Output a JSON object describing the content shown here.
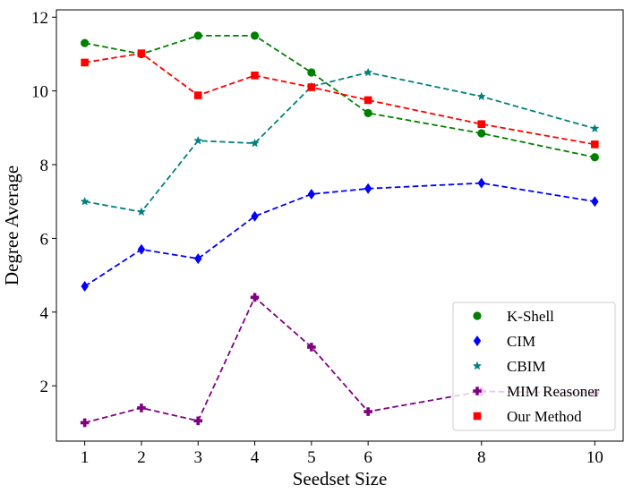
{
  "chart_data": {
    "type": "line",
    "title": "",
    "xlabel": "Seedset Size",
    "ylabel": "Degree Average",
    "xlim": [
      0.5,
      10.5
    ],
    "ylim": [
      0.5,
      12.2
    ],
    "xticks": [
      1,
      2,
      3,
      4,
      5,
      6,
      8,
      10
    ],
    "yticks": [
      2,
      4,
      6,
      8,
      10,
      12
    ],
    "x": [
      1,
      2,
      3,
      4,
      5,
      6,
      8,
      10
    ],
    "grid": false,
    "legend_position": "bottom-right",
    "series": [
      {
        "name": "K-Shell",
        "color": "#008000",
        "marker": "circle",
        "values": [
          11.3,
          11.0,
          11.5,
          11.5,
          10.5,
          9.4,
          8.85,
          8.2
        ]
      },
      {
        "name": "CIM",
        "color": "#0000ff",
        "marker": "thin-diamond",
        "values": [
          4.7,
          5.7,
          5.45,
          6.6,
          7.2,
          7.35,
          7.5,
          7.0
        ]
      },
      {
        "name": "CBIM",
        "color": "#008080",
        "marker": "star",
        "values": [
          7.0,
          6.72,
          8.65,
          8.58,
          10.12,
          10.5,
          9.85,
          8.98
        ]
      },
      {
        "name": "MIM Reasoner",
        "color": "#800080",
        "marker": "plus-filled",
        "values": [
          1.0,
          1.4,
          1.05,
          4.4,
          3.05,
          1.3,
          1.85,
          1.8
        ]
      },
      {
        "name": "Our Method",
        "color": "#ff0000",
        "marker": "square",
        "values": [
          10.77,
          11.02,
          9.88,
          10.42,
          10.1,
          9.75,
          9.1,
          8.55
        ]
      }
    ]
  }
}
